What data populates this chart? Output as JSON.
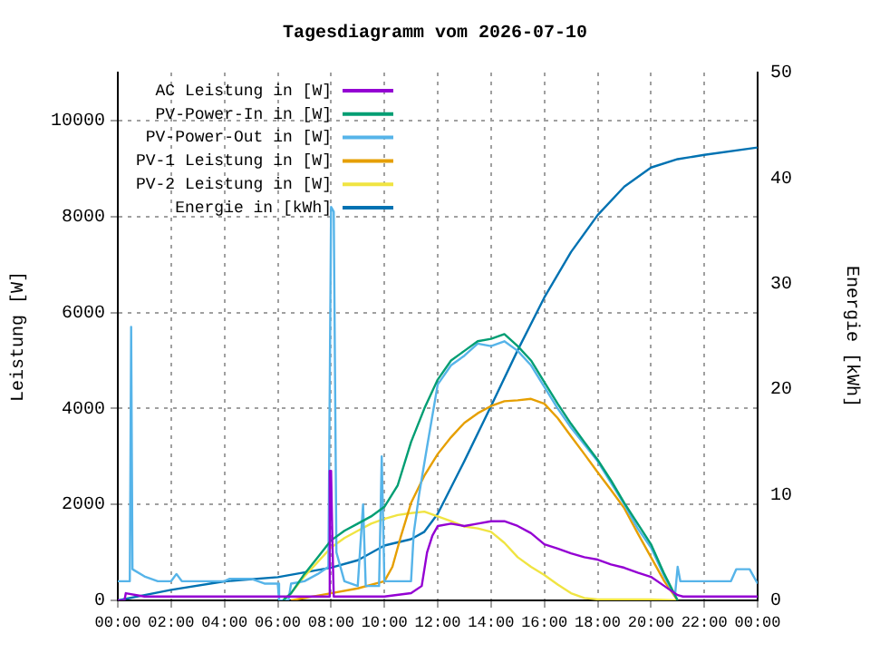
{
  "chart_data": {
    "type": "line",
    "title": "Tagesdiagramm vom 2026-07-10",
    "ylabel": "Leistung [W]",
    "y2label": "Energie [kWh]",
    "xlim": [
      0,
      24
    ],
    "xticks": [
      {
        "value": 0,
        "label": "00:00"
      },
      {
        "value": 2,
        "label": "02:00"
      },
      {
        "value": 4,
        "label": "04:00"
      },
      {
        "value": 6,
        "label": "06:00"
      },
      {
        "value": 8,
        "label": "08:00"
      },
      {
        "value": 10,
        "label": "10:00"
      },
      {
        "value": 12,
        "label": "12:00"
      },
      {
        "value": 14,
        "label": "14:00"
      },
      {
        "value": 16,
        "label": "16:00"
      },
      {
        "value": 18,
        "label": "18:00"
      },
      {
        "value": 20,
        "label": "20:00"
      },
      {
        "value": 22,
        "label": "22:00"
      },
      {
        "value": 24,
        "label": "00:00"
      }
    ],
    "ylim": [
      0,
      11000
    ],
    "yticks": [
      0,
      2000,
      4000,
      6000,
      8000,
      10000
    ],
    "y2lim": [
      0,
      50
    ],
    "y2ticks": [
      0,
      10,
      20,
      30,
      40,
      50
    ],
    "grid": true,
    "legend": "top left",
    "marker": "none",
    "line_style": "solid",
    "series": [
      {
        "name": "AC Leistung in [W]",
        "color": "#9400d3",
        "x": [
          0,
          0.25,
          0.3,
          1,
          2,
          4,
          6,
          7.9,
          7.95,
          8.0,
          8.05,
          8.1,
          9,
          10,
          11,
          11.4,
          11.6,
          11.8,
          12,
          12.5,
          13,
          13.5,
          14,
          14.5,
          15,
          15.5,
          16,
          16.5,
          17,
          17.5,
          18,
          18.5,
          19,
          19.5,
          20,
          20.5,
          21,
          21.2,
          22,
          23,
          24
        ],
        "values": [
          0,
          0,
          150,
          80,
          80,
          80,
          80,
          80,
          2700,
          2700,
          1200,
          80,
          80,
          80,
          150,
          300,
          1000,
          1350,
          1550,
          1600,
          1550,
          1600,
          1650,
          1650,
          1550,
          1400,
          1170,
          1080,
          980,
          900,
          850,
          750,
          680,
          580,
          490,
          300,
          110,
          80,
          80,
          80,
          80
        ]
      },
      {
        "name": "PV-Power-In in [W]",
        "color": "#009e73",
        "x": [
          6.2,
          6.5,
          7,
          7.5,
          8,
          8.5,
          9,
          9.5,
          10,
          10.5,
          11,
          11.5,
          12,
          12.5,
          13,
          13.5,
          14,
          14.5,
          15,
          15.5,
          16,
          16.5,
          17,
          17.5,
          18,
          18.5,
          19,
          19.5,
          20,
          20.5,
          21
        ],
        "values": [
          0,
          150,
          550,
          900,
          1250,
          1450,
          1600,
          1750,
          1950,
          2400,
          3300,
          4000,
          4600,
          5000,
          5200,
          5400,
          5450,
          5550,
          5300,
          5000,
          4550,
          4100,
          3680,
          3300,
          2930,
          2500,
          2030,
          1600,
          1170,
          550,
          0
        ]
      },
      {
        "name": "PV-Power-Out in [W]",
        "color": "#56b4e9",
        "x": [
          0,
          0.45,
          0.5,
          0.55,
          1,
          1.5,
          2,
          2.2,
          2.4,
          4,
          4.2,
          5,
          5.5,
          6,
          6.05,
          6.4,
          6.5,
          7,
          7.5,
          7.9,
          8,
          8.1,
          8.2,
          8.5,
          9,
          9.2,
          9.3,
          9.8,
          9.9,
          10,
          10.5,
          11,
          11.1,
          11.3,
          11.6,
          12,
          12.5,
          13,
          13.5,
          14,
          14.5,
          15,
          15.5,
          16,
          16.5,
          17,
          17.5,
          18,
          18.5,
          19,
          19.5,
          20,
          20.5,
          20.9,
          21,
          21.1,
          23,
          23.2,
          23.7,
          24
        ],
        "values": [
          400,
          400,
          5700,
          650,
          500,
          400,
          400,
          550,
          400,
          400,
          450,
          450,
          350,
          350,
          0,
          0,
          350,
          400,
          550,
          700,
          8200,
          8100,
          1000,
          400,
          300,
          2000,
          300,
          300,
          3000,
          400,
          400,
          400,
          1400,
          2200,
          3200,
          4500,
          4900,
          5100,
          5350,
          5300,
          5400,
          5200,
          4900,
          4450,
          4000,
          3600,
          3250,
          2900,
          2450,
          2000,
          1500,
          1100,
          500,
          100,
          700,
          400,
          400,
          650,
          650,
          350
        ]
      },
      {
        "name": "PV-1 Leistung in [W]",
        "color": "#e69f00",
        "x": [
          6.5,
          7,
          8,
          9,
          10,
          10.3,
          10.6,
          11,
          11.5,
          12,
          12.5,
          13,
          13.5,
          14,
          14.5,
          15,
          15.5,
          16,
          16.5,
          17,
          17.5,
          18,
          18.5,
          19,
          19.5,
          20,
          20.5,
          21
        ],
        "values": [
          0,
          50,
          150,
          250,
          400,
          700,
          1300,
          2030,
          2600,
          3050,
          3400,
          3700,
          3900,
          4050,
          4150,
          4170,
          4200,
          4100,
          3800,
          3420,
          3050,
          2670,
          2300,
          1920,
          1400,
          900,
          400,
          0
        ]
      },
      {
        "name": "PV-2 Leistung in [W]",
        "color": "#f0e442",
        "x": [
          6.2,
          6.5,
          7,
          7.5,
          8,
          8.5,
          9,
          9.5,
          10,
          10.5,
          11,
          11.5,
          12,
          12.5,
          13,
          13.5,
          14,
          14.5,
          15,
          15.5,
          16,
          16.5,
          17,
          17.5,
          18,
          20,
          21
        ],
        "values": [
          0,
          150,
          500,
          800,
          1100,
          1300,
          1450,
          1600,
          1700,
          1780,
          1820,
          1850,
          1750,
          1650,
          1540,
          1500,
          1430,
          1200,
          900,
          700,
          530,
          330,
          150,
          50,
          20,
          20,
          0
        ]
      },
      {
        "name": "Energie in [kWh]",
        "color": "#0072b2",
        "axis": "y2",
        "x": [
          0,
          2,
          4,
          6,
          8,
          9,
          10,
          11,
          11.5,
          12,
          13,
          14,
          15,
          16,
          17,
          18,
          19,
          20,
          21,
          22,
          24
        ],
        "values": [
          0,
          1,
          1.8,
          2.2,
          3.1,
          3.8,
          5.2,
          5.8,
          6.5,
          8.2,
          13.2,
          18.4,
          23.7,
          28.7,
          33,
          36.5,
          39.2,
          41,
          41.8,
          42.2,
          42.9
        ]
      }
    ]
  }
}
